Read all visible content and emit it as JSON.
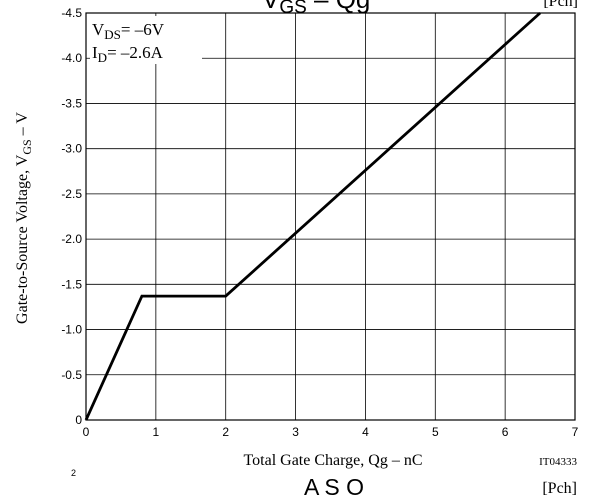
{
  "chart_data": {
    "type": "line",
    "title_top": "VGS  –  Qg",
    "title_top_main": "V",
    "title_top_sub": "GS",
    "title_top_rest": "  –  Qg",
    "pch_top": "[Pch]",
    "xlabel": "Total Gate Charge, Qg  –  nC",
    "ylabel_main": "Gate-to-Source Voltage, V",
    "ylabel_sub": "GS",
    "ylabel_unit": "  –  V",
    "xlim": [
      0,
      7
    ],
    "ylim": [
      0,
      -4.5
    ],
    "x_ticks": [
      "0",
      "1",
      "2",
      "3",
      "4",
      "5",
      "6",
      "7"
    ],
    "y_ticks": [
      "0",
      "-0.5",
      "-1.0",
      "-1.5",
      "-2.0",
      "-2.5",
      "-3.0",
      "-3.5",
      "-4.0",
      "-4.5"
    ],
    "grid": true,
    "conditions": {
      "vds_main": "V",
      "vds_sub": "DS",
      "vds_value": "= –6V",
      "id_main": "I",
      "id_sub": "D",
      "id_value": "= –2.6A"
    },
    "series": [
      {
        "x": [
          0,
          0.8,
          2.0,
          6.5
        ],
        "y": [
          0,
          -1.37,
          -1.37,
          -4.5
        ]
      }
    ],
    "figure_id": "IT04333",
    "next_title": "A S O",
    "pch_bottom": "[Pch]",
    "corner_mark": "2"
  }
}
